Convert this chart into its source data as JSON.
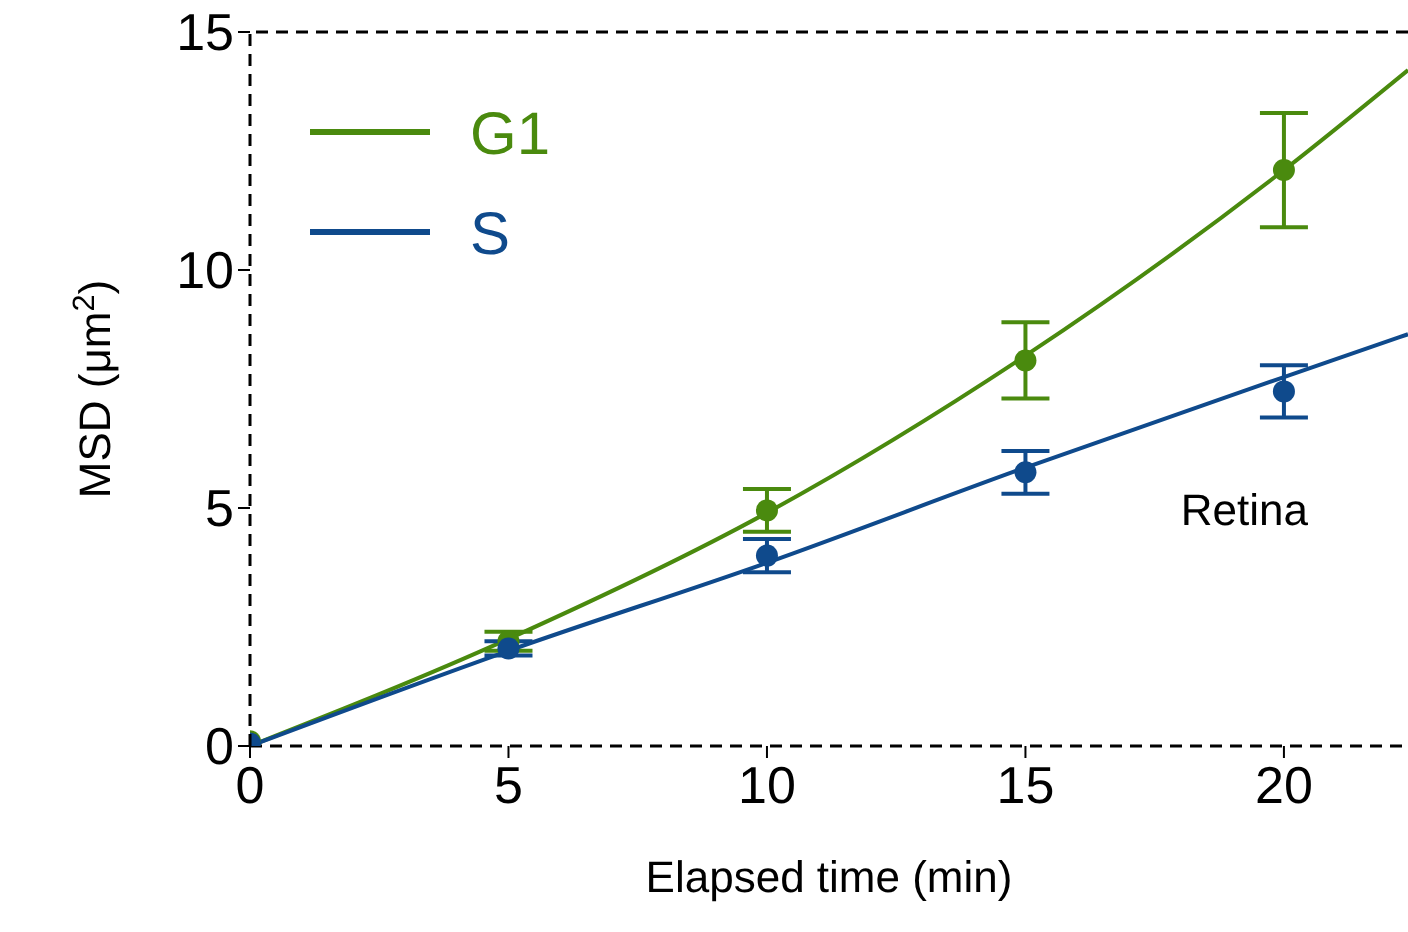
{
  "chart_data": {
    "type": "line",
    "xlabel": "Elapsed time (min)",
    "ylabel": "MSD (μm$^{2}$)",
    "annotations": [
      "Retina"
    ],
    "xlim": [
      0,
      22.4
    ],
    "xticks": [
      0,
      5,
      10,
      15,
      20
    ],
    "ylim": [
      0,
      15
    ],
    "yticks": [
      0,
      5,
      10,
      15
    ],
    "grid": false,
    "legend": "top left",
    "marker": "circle",
    "series": [
      {
        "name": "G1",
        "marker": "none",
        "color": "#4a8a0e",
        "x": [
          0,
          5,
          10,
          15,
          20,
          22.4
        ],
        "values": [
          0,
          2.25,
          4.9,
          8.2,
          12.1,
          14.2
        ]
      },
      {
        "name": "S",
        "marker": "none",
        "color": "#0f4a8c",
        "x": [
          0,
          5,
          10,
          15,
          20,
          22.4
        ],
        "values": [
          0,
          2.0,
          3.85,
          5.85,
          7.75,
          8.65
        ]
      },
      {
        "type": "scatter",
        "color": "#4a8a0e",
        "x": [
          0,
          5,
          10,
          15,
          20
        ],
        "values": [
          0.1,
          2.2,
          4.95,
          8.1,
          12.1
        ],
        "errors": [
          null,
          0.2,
          0.45,
          0.8,
          1.2
        ]
      },
      {
        "type": "scatter",
        "color": "#0f4a8c",
        "x": [
          0,
          5,
          10,
          15,
          20
        ],
        "values": [
          0.05,
          2.05,
          4.0,
          5.75,
          7.45
        ],
        "errors": [
          null,
          0.15,
          0.35,
          0.45,
          0.55
        ]
      }
    ]
  }
}
